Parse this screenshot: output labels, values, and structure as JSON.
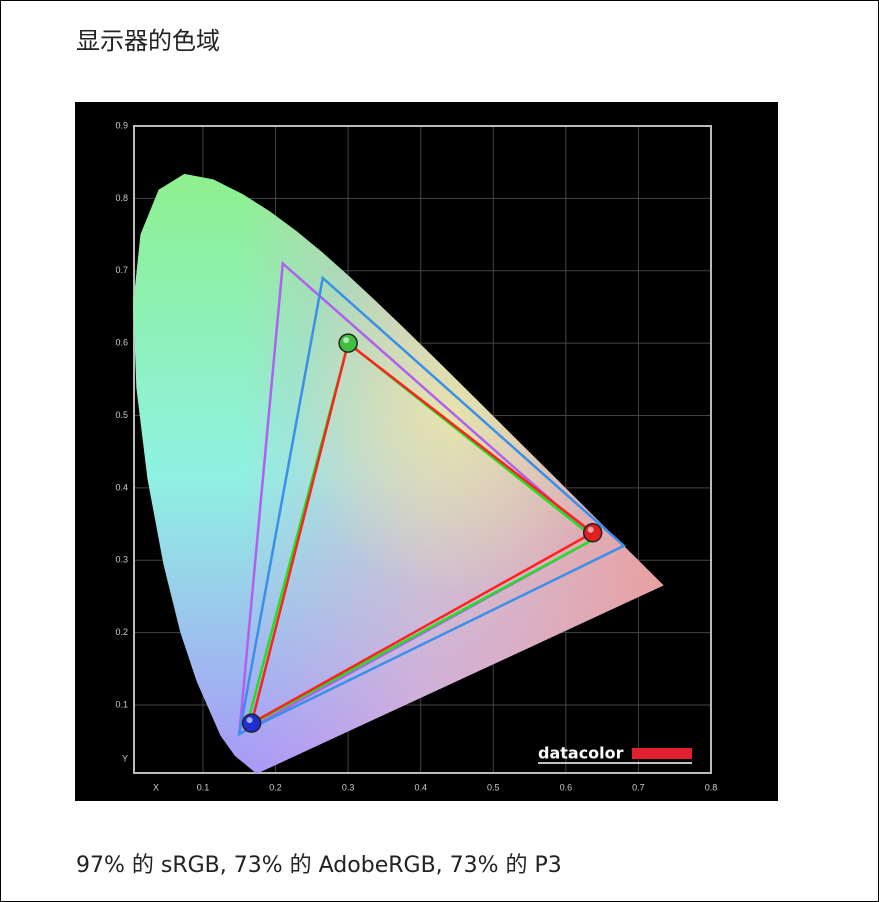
{
  "page": {
    "title": "显示器的色域",
    "caption": "97% 的 sRGB, 73% 的 AdobeRGB, 73% 的 P3"
  },
  "chart_data": {
    "type": "chromaticity",
    "x_label": "X",
    "y_label": "Y",
    "logo": "datacolor",
    "xlim": [
      0,
      0.8
    ],
    "ylim": [
      0,
      0.9
    ],
    "xticks": [
      0.1,
      0.2,
      0.3,
      0.4,
      0.5,
      0.6,
      0.7,
      0.8
    ],
    "yticks": [
      0.1,
      0.2,
      0.3,
      0.4,
      0.5,
      0.6,
      0.7,
      0.8,
      0.9
    ],
    "grid": true,
    "locus": {
      "x": [
        0.1741,
        0.144,
        0.1241,
        0.0913,
        0.0687,
        0.0454,
        0.0235,
        0.0082,
        0.0039,
        0.0139,
        0.0389,
        0.0743,
        0.1142,
        0.1547,
        0.1929,
        0.2296,
        0.2658,
        0.3016,
        0.3373,
        0.3731,
        0.4087,
        0.4441,
        0.4788,
        0.5125,
        0.5448,
        0.5752,
        0.6029,
        0.627,
        0.6482,
        0.6658,
        0.6801,
        0.7347
      ],
      "y": [
        0.005,
        0.0297,
        0.0578,
        0.1327,
        0.2007,
        0.295,
        0.4127,
        0.5384,
        0.6548,
        0.7502,
        0.812,
        0.8338,
        0.8262,
        0.8059,
        0.7816,
        0.7543,
        0.7243,
        0.6923,
        0.6589,
        0.6245,
        0.5896,
        0.5547,
        0.5202,
        0.4866,
        0.4544,
        0.4242,
        0.3965,
        0.3725,
        0.3514,
        0.334,
        0.3197,
        0.2653
      ]
    },
    "series": [
      {
        "color": "#b060f0",
        "x": [
          0.64,
          0.21,
          0.15
        ],
        "y": [
          0.33,
          0.71,
          0.06
        ]
      },
      {
        "color": "#3a90e8",
        "x": [
          0.68,
          0.265,
          0.15
        ],
        "y": [
          0.32,
          0.69,
          0.06
        ]
      },
      {
        "color": "#20e020",
        "x": [
          0.64,
          0.3,
          0.16
        ],
        "y": [
          0.33,
          0.6,
          0.07
        ]
      },
      {
        "color": "#ff2020",
        "x": [
          0.637,
          0.3,
          0.167
        ],
        "y": [
          0.338,
          0.6,
          0.075
        ]
      }
    ],
    "points": {
      "x": [
        0.637,
        0.3,
        0.167
      ],
      "y": [
        0.338,
        0.6,
        0.075
      ],
      "colors": [
        "#e02020",
        "#40c040",
        "#2030d0"
      ]
    }
  }
}
